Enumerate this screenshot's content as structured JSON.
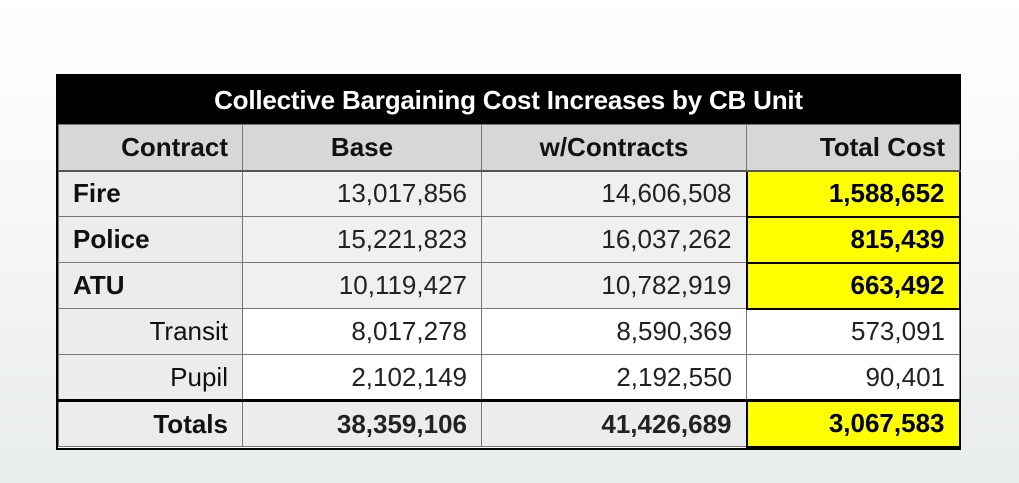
{
  "table": {
    "title": "Collective Bargaining Cost Increases by CB Unit",
    "headers": [
      "Contract",
      "Base",
      "w/Contracts",
      "Total Cost"
    ],
    "rows": [
      {
        "contract": "Fire",
        "base": "13,017,856",
        "with_contracts": "14,606,508",
        "total_cost": "1,588,652"
      },
      {
        "contract": "Police",
        "base": "15,221,823",
        "with_contracts": "16,037,262",
        "total_cost": "815,439"
      },
      {
        "contract": "ATU",
        "base": "10,119,427",
        "with_contracts": "10,782,919",
        "total_cost": "663,492"
      },
      {
        "contract": "Transit",
        "base": "8,017,278",
        "with_contracts": "8,590,369",
        "total_cost": "573,091"
      },
      {
        "contract": "Pupil",
        "base": "2,102,149",
        "with_contracts": "2,192,550",
        "total_cost": "90,401"
      }
    ],
    "totals": {
      "label": "Totals",
      "base": "38,359,106",
      "with_contracts": "41,426,689",
      "total_cost": "3,067,583"
    },
    "highlight_color": "#ffff00"
  }
}
